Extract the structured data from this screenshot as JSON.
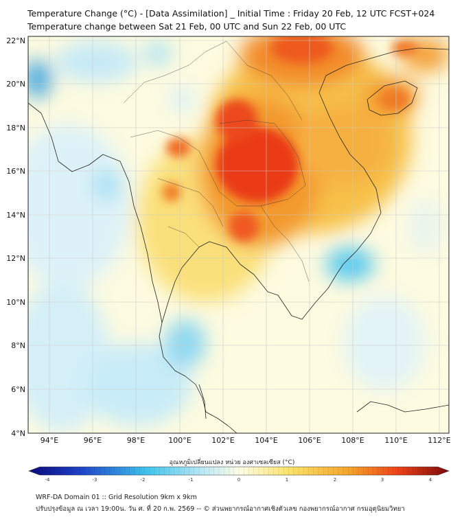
{
  "title": {
    "line1": "Temperature Change (°C) - [Data Assimilation] _ Initial Time : Friday 20 Feb, 12 UTC FCST+024",
    "line2": "Temperature change between Sat 21 Feb, 00 UTC and Sun 22 Feb, 00 UTC"
  },
  "axes": {
    "lat_labels": [
      "22°N",
      "20°N",
      "18°N",
      "16°N",
      "14°N",
      "12°N",
      "10°N",
      "8°N",
      "6°N",
      "4°N"
    ],
    "lon_labels": [
      "94°E",
      "96°E",
      "98°E",
      "100°E",
      "102°E",
      "104°E",
      "106°E",
      "108°E",
      "110°E",
      "112°E"
    ]
  },
  "colorbar": {
    "title": "อุณหภูมิเปลี่ยนแปลง หน่วย องศาเซลเซียส (°C)",
    "tick_labels": [
      "-4",
      "-3",
      "-2",
      "-1",
      "0",
      "1",
      "2",
      "3",
      "4"
    ],
    "colors": {
      "min": "#0a0a78",
      "cold": "#1e3fc8",
      "cool": "#3fc3ec",
      "light": "#bfeaf6",
      "neutral": "#fdfde6",
      "warm": "#fbe36a",
      "orange": "#f5a52a",
      "hot": "#ee4018",
      "max": "#7a0a0a"
    }
  },
  "footer": {
    "line1": "WRF-DA Domain 01 :: Grid Resolution 9km x 9km",
    "line2": "ปรับปรุงข้อมูล ณ เวลา 19:00น. วัน ศ. ที่ 20 ก.พ. 2569 -- © ส่วนพยากรณ์อากาศเชิงตัวเลข กองพยากรณ์อากาศ กรมอุตุนิยมวิทยา"
  }
}
